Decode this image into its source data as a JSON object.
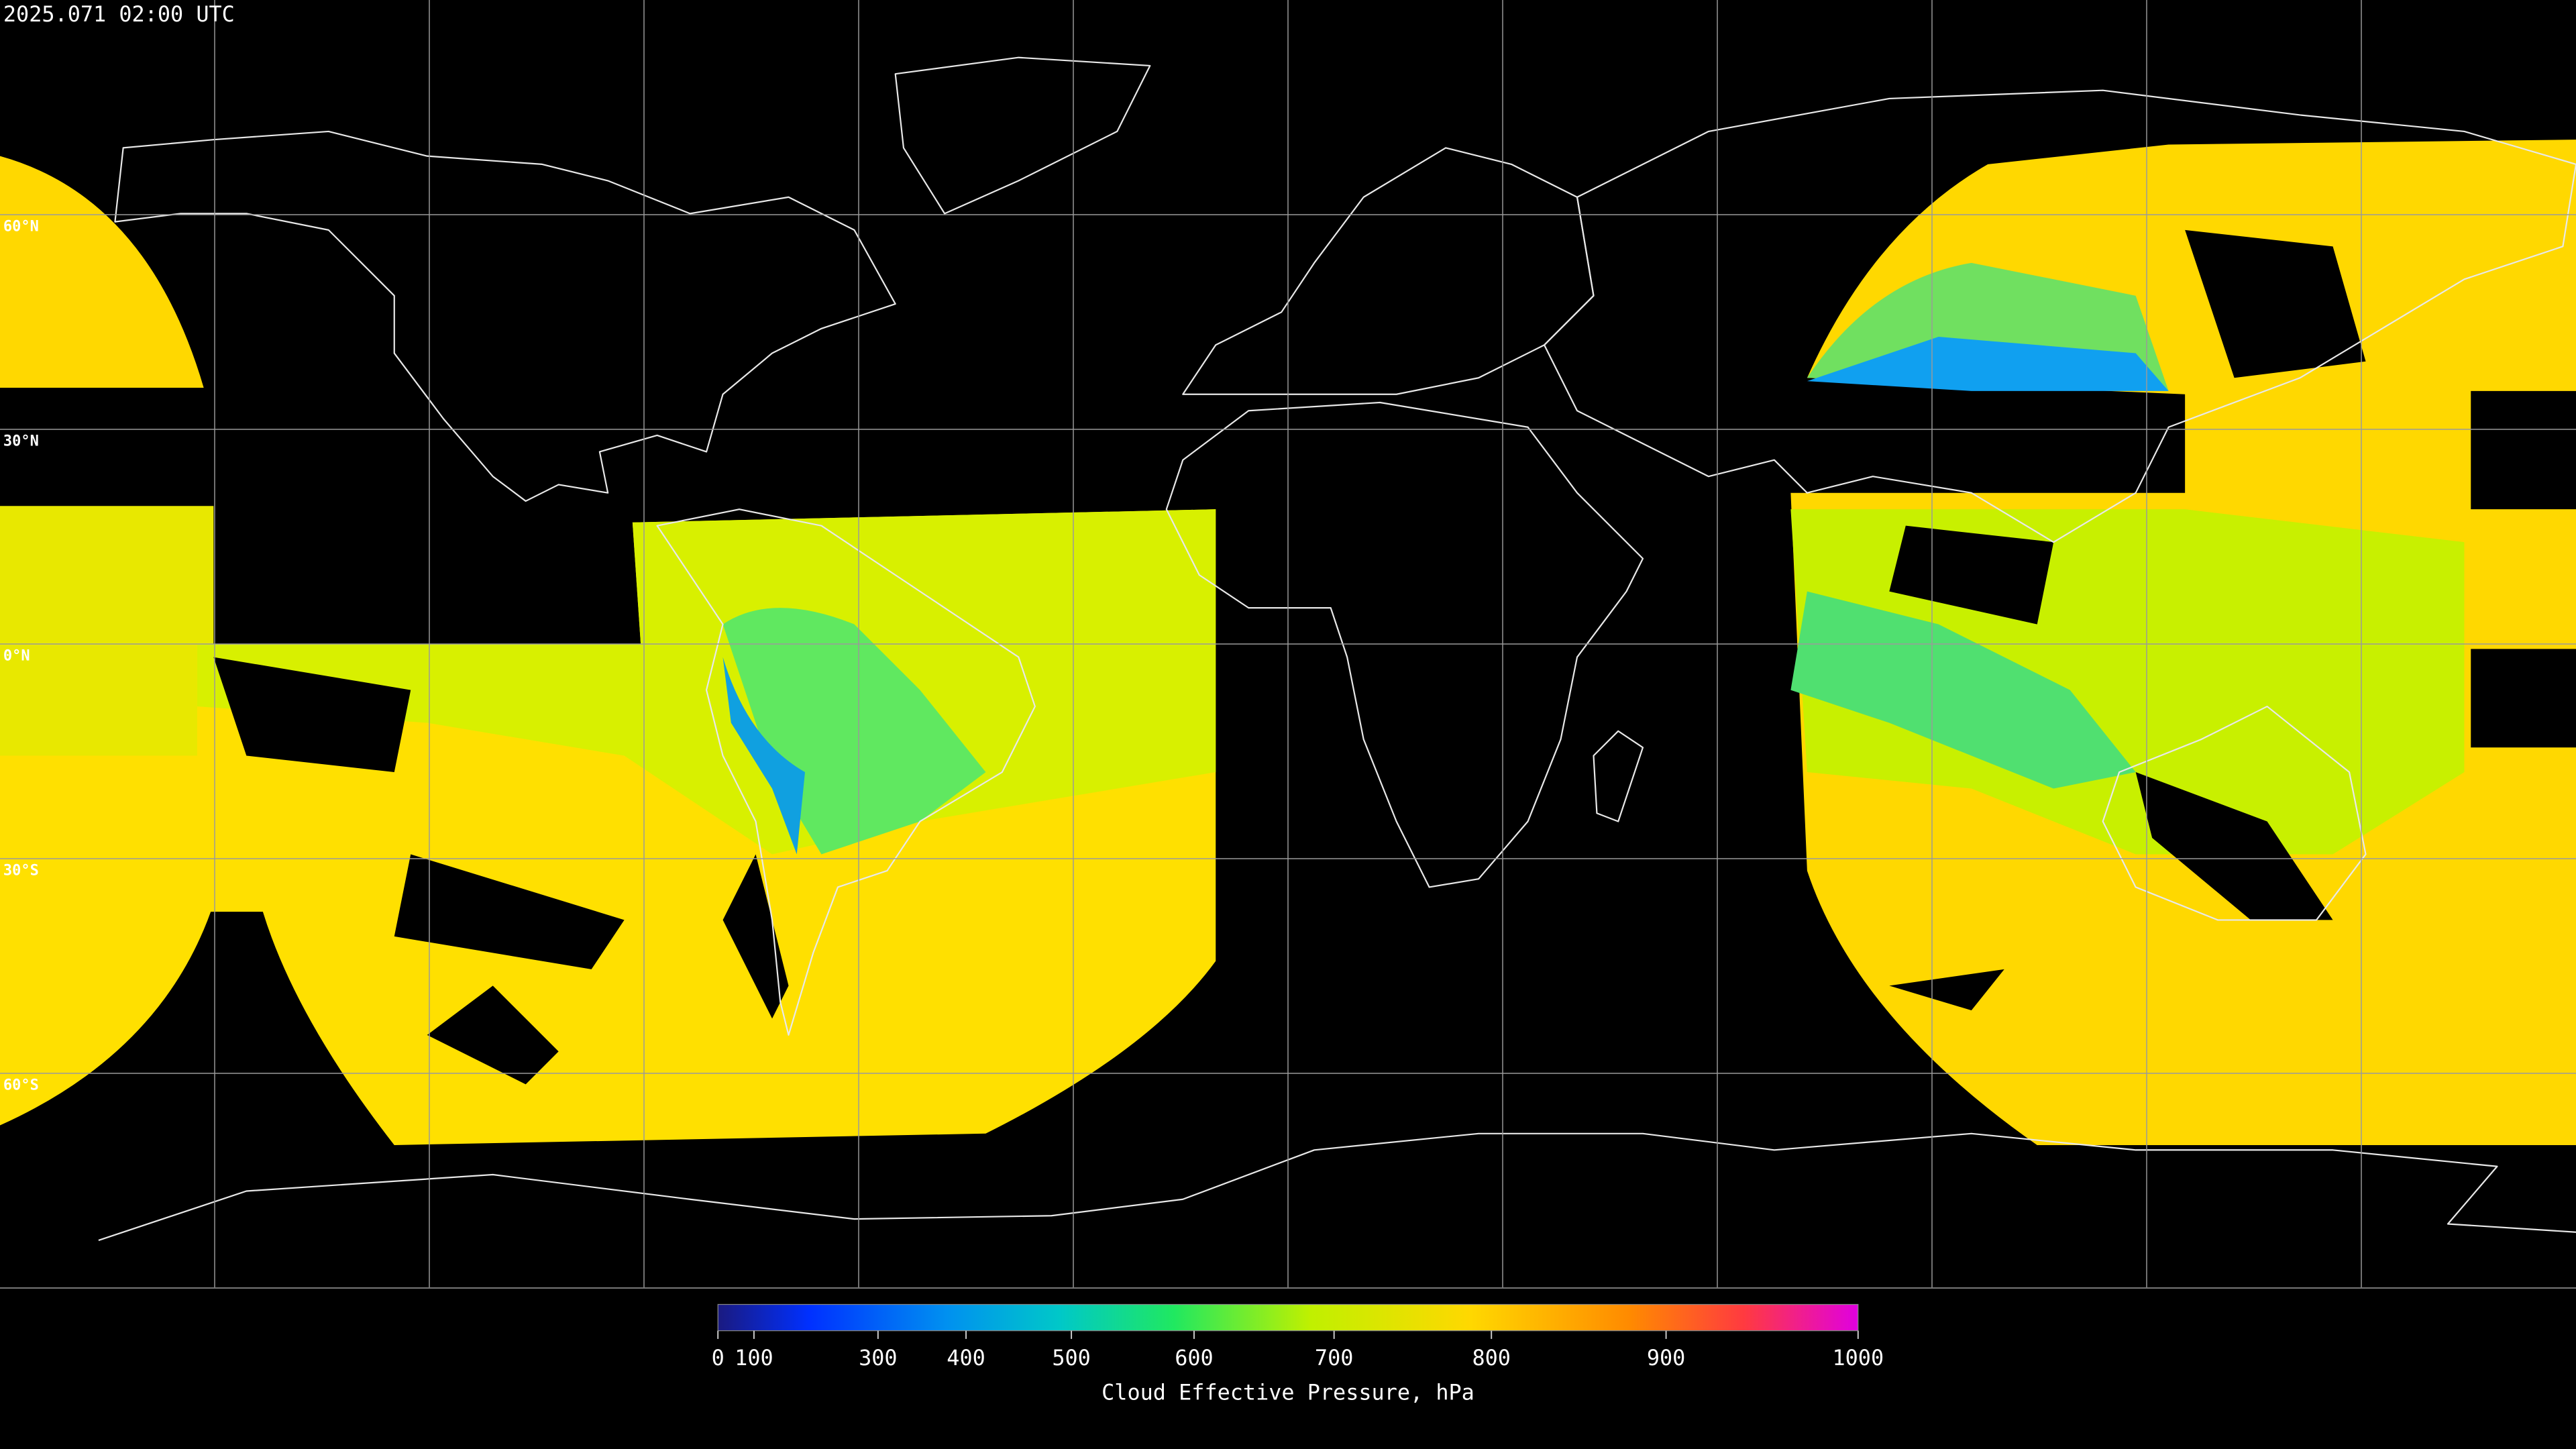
{
  "header": {
    "timestamp": "2025.071 02:00 UTC"
  },
  "map": {
    "parallels": [
      {
        "value": 60,
        "label": "60°N"
      },
      {
        "value": 30,
        "label": "30°N"
      },
      {
        "value": 0,
        "label": "0°N"
      },
      {
        "value": -30,
        "label": "30°S"
      },
      {
        "value": -60,
        "label": "60°S"
      }
    ]
  },
  "colorbar": {
    "label": "Cloud Effective Pressure, hPa",
    "range": [
      0,
      1000
    ],
    "ticks": [
      0,
      100,
      300,
      400,
      500,
      600,
      700,
      800,
      900,
      1000
    ]
  }
}
